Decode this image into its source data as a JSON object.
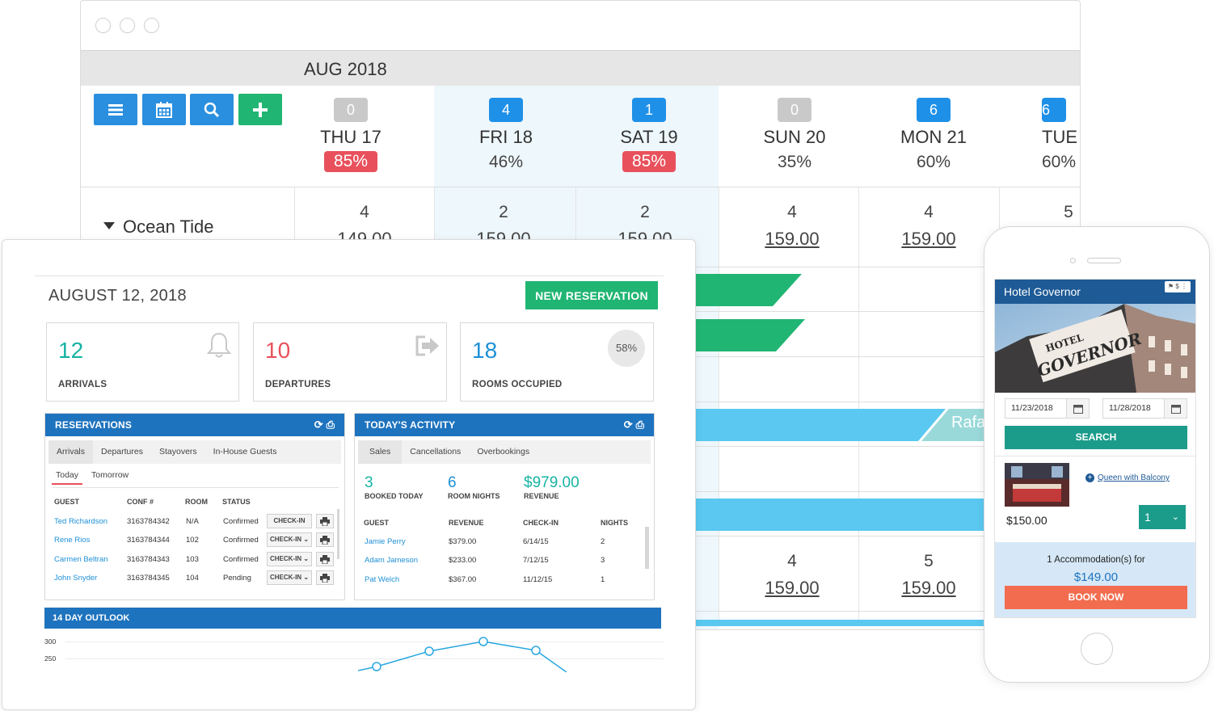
{
  "calendar": {
    "month": "AUG 2018",
    "days": [
      {
        "badge": "0",
        "badge_color": "#c9c9c9",
        "name": "THU 17",
        "occupancy": "85%",
        "high": true
      },
      {
        "badge": "4",
        "badge_color": "#1e90e8",
        "name": "FRI 18",
        "occupancy": "46%",
        "high": false
      },
      {
        "badge": "1",
        "badge_color": "#1e90e8",
        "name": "SAT 19",
        "occupancy": "85%",
        "high": true
      },
      {
        "badge": "0",
        "badge_color": "#c9c9c9",
        "name": "SUN 20",
        "occupancy": "35%",
        "high": false
      },
      {
        "badge": "6",
        "badge_color": "#1e90e8",
        "name": "MON 21",
        "occupancy": "60%",
        "high": false
      },
      {
        "badge": "6",
        "badge_color": "#1e90e8",
        "name": "TUE",
        "occupancy": "60%",
        "high": false
      }
    ],
    "room_group": "Ocean Tide",
    "row1": [
      {
        "count": "4",
        "price": "149.00"
      },
      {
        "count": "2",
        "price": "159.00"
      },
      {
        "count": "2",
        "price": "159.00"
      },
      {
        "count": "4",
        "price": "159.00"
      },
      {
        "count": "4",
        "price": "159.00"
      },
      {
        "count": "5",
        "price": ""
      }
    ],
    "row2": [
      {
        "count": "4",
        "price": "159.00"
      },
      {
        "count": "5",
        "price": "159.00"
      }
    ],
    "booking_label": "Rafa",
    "colors": {
      "accent_blue": "#1e90e8",
      "green": "#21b573",
      "booking_blue": "#5ac8f0",
      "booking_teal": "#9ad9d9",
      "alert_red": "#e8515c"
    }
  },
  "dashboard": {
    "date": "AUGUST 12, 2018",
    "new_reservation_label": "NEW RESERVATION",
    "stats": [
      {
        "value": "12",
        "label": "ARRIVALS",
        "color": "#16b3a3",
        "icon": "bell-icon"
      },
      {
        "value": "10",
        "label": "DEPARTURES",
        "color": "#e8515c",
        "icon": "sign-out-icon"
      },
      {
        "value": "18",
        "label": "ROOMS OCCUPIED",
        "color": "#1e90d6",
        "percent": "58%"
      }
    ],
    "reservations": {
      "title": "RESERVATIONS",
      "tabs": [
        "Arrivals",
        "Departures",
        "Stayovers",
        "In-House Guests"
      ],
      "subtabs": [
        "Today",
        "Tomorrow"
      ],
      "columns": [
        "GUEST",
        "CONF #",
        "ROOM",
        "STATUS"
      ],
      "action_label": "CHECK-IN",
      "rows": [
        {
          "guest": "Ted Richardson",
          "conf": "3163784342",
          "room": "N/A",
          "status": "Confirmed"
        },
        {
          "guest": "Rene Rios",
          "conf": "3163784344",
          "room": "102",
          "status": "Confirmed"
        },
        {
          "guest": "Carmen Beltran",
          "conf": "3163784343",
          "room": "103",
          "status": "Confirmed"
        },
        {
          "guest": "John Snyder",
          "conf": "3163784345",
          "room": "104",
          "status": "Pending"
        }
      ]
    },
    "activity": {
      "title": "TODAY'S ACTIVITY",
      "tabs": [
        "Sales",
        "Cancellations",
        "Overbookings"
      ],
      "summary": [
        {
          "value": "3",
          "label": "BOOKED TODAY"
        },
        {
          "value": "6",
          "label": "ROOM NIGHTS"
        },
        {
          "value": "$979.00",
          "label": "REVENUE"
        }
      ],
      "columns": [
        "GUEST",
        "REVENUE",
        "CHECK-IN",
        "NIGHTS"
      ],
      "rows": [
        {
          "guest": "Jamie Perry",
          "revenue": "$379.00",
          "checkin": "6/14/15",
          "nights": "2"
        },
        {
          "guest": "Adam Jameson",
          "revenue": "$233.00",
          "checkin": "7/12/15",
          "nights": "3"
        },
        {
          "guest": "Pat Welch",
          "revenue": "$367.00",
          "checkin": "11/12/15",
          "nights": "1"
        }
      ]
    },
    "outlook": {
      "title": "14 DAY OUTLOOK",
      "y_ticks": [
        "300",
        "250"
      ]
    }
  },
  "phone": {
    "hotel_name": "Hotel Governor",
    "header_icons": "$",
    "check_in": "11/23/2018",
    "check_out": "11/28/2018",
    "search_label": "SEARCH",
    "room_name": "Queen with Balcony",
    "room_price": "$150.00",
    "quantity": "1",
    "accommodation_text": "1 Accommodation(s) for",
    "total": "$149.00",
    "book_label": "BOOK NOW"
  }
}
